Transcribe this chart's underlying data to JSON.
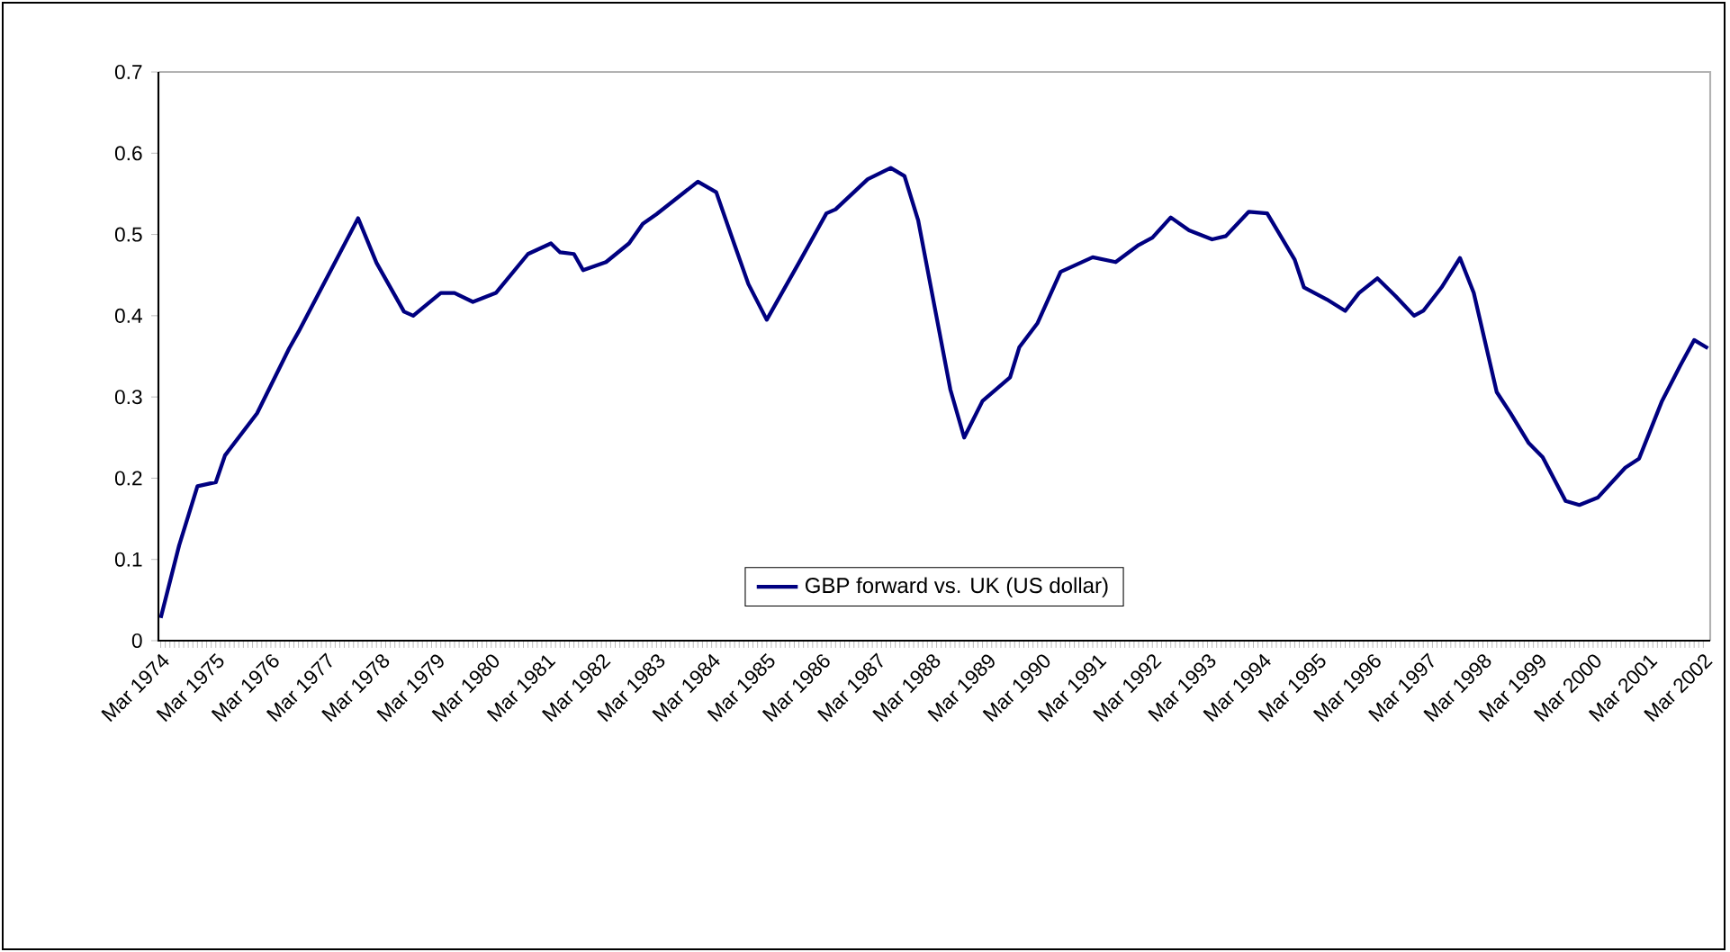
{
  "chart_data": {
    "type": "line",
    "x": [
      "1974-03",
      "1974-07",
      "1974-11",
      "1975-03",
      "1975-05",
      "1975-12",
      "1976-07",
      "1976-09",
      "1977-10",
      "1978-02",
      "1978-08",
      "1978-10",
      "1979-04",
      "1979-07",
      "1979-11",
      "1980-04",
      "1980-11",
      "1981-04",
      "1981-06",
      "1981-09",
      "1981-11",
      "1982-04",
      "1982-09",
      "1982-12",
      "1983-03",
      "1983-12",
      "1984-04",
      "1984-08",
      "1984-11",
      "1985-03",
      "1985-10",
      "1986-04",
      "1986-06",
      "1987-01",
      "1987-06",
      "1987-09",
      "1987-12",
      "1988-04",
      "1988-07",
      "1988-10",
      "1989-02",
      "1989-08",
      "1989-10",
      "1990-02",
      "1990-07",
      "1991-02",
      "1991-07",
      "1991-12",
      "1992-03",
      "1992-07",
      "1992-11",
      "1993-04",
      "1993-07",
      "1993-12",
      "1994-04",
      "1994-10",
      "1994-12",
      "1995-05",
      "1995-09",
      "1995-12",
      "1996-04",
      "1996-08",
      "1996-12",
      "1997-02",
      "1997-06",
      "1997-10",
      "1998-01",
      "1998-06",
      "1998-09",
      "1999-01",
      "1999-04",
      "1999-09",
      "1999-12",
      "2000-04",
      "2000-10",
      "2001-01",
      "2001-06",
      "2001-10",
      "2002-01",
      "2002-04"
    ],
    "series": [
      {
        "name": "GBP forward vs. UK (US dollar)",
        "color": "#000080",
        "values": [
          0.028,
          0.117,
          0.19,
          0.195,
          0.228,
          0.28,
          0.36,
          0.38,
          0.52,
          0.465,
          0.405,
          0.4,
          0.428,
          0.428,
          0.417,
          0.428,
          0.476,
          0.489,
          0.478,
          0.476,
          0.456,
          0.466,
          0.489,
          0.513,
          0.525,
          0.565,
          0.552,
          0.487,
          0.439,
          0.395,
          0.465,
          0.526,
          0.531,
          0.568,
          0.582,
          0.572,
          0.517,
          0.398,
          0.309,
          0.25,
          0.295,
          0.324,
          0.361,
          0.391,
          0.454,
          0.472,
          0.466,
          0.487,
          0.496,
          0.521,
          0.505,
          0.494,
          0.498,
          0.528,
          0.526,
          0.469,
          0.435,
          0.42,
          0.406,
          0.428,
          0.446,
          0.424,
          0.4,
          0.406,
          0.435,
          0.471,
          0.428,
          0.306,
          0.28,
          0.243,
          0.226,
          0.172,
          0.167,
          0.176,
          0.213,
          0.224,
          0.295,
          0.339,
          0.37,
          0.36
        ]
      }
    ],
    "xlim": [
      "1974-03",
      "2002-04"
    ],
    "xticks": [
      {
        "value": "1974-03",
        "label": "Mar 1974"
      },
      {
        "value": "1975-03",
        "label": "Mar 1975"
      },
      {
        "value": "1976-03",
        "label": "Mar 1976"
      },
      {
        "value": "1977-03",
        "label": "Mar 1977"
      },
      {
        "value": "1978-03",
        "label": "Mar 1978"
      },
      {
        "value": "1979-03",
        "label": "Mar 1979"
      },
      {
        "value": "1980-03",
        "label": "Mar 1980"
      },
      {
        "value": "1981-03",
        "label": "Mar 1981"
      },
      {
        "value": "1982-03",
        "label": "Mar 1982"
      },
      {
        "value": "1983-03",
        "label": "Mar 1983"
      },
      {
        "value": "1984-03",
        "label": "Mar 1984"
      },
      {
        "value": "1985-03",
        "label": "Mar 1985"
      },
      {
        "value": "1986-03",
        "label": "Mar 1986"
      },
      {
        "value": "1987-03",
        "label": "Mar 1987"
      },
      {
        "value": "1988-03",
        "label": "Mar 1988"
      },
      {
        "value": "1989-03",
        "label": "Mar 1989"
      },
      {
        "value": "1990-03",
        "label": "Mar 1990"
      },
      {
        "value": "1991-03",
        "label": "Mar 1991"
      },
      {
        "value": "1992-03",
        "label": "Mar 1992"
      },
      {
        "value": "1993-03",
        "label": "Mar 1993"
      },
      {
        "value": "1994-03",
        "label": "Mar 1994"
      },
      {
        "value": "1995-03",
        "label": "Mar 1995"
      },
      {
        "value": "1996-03",
        "label": "Mar 1996"
      },
      {
        "value": "1997-03",
        "label": "Mar 1997"
      },
      {
        "value": "1998-03",
        "label": "Mar 1998"
      },
      {
        "value": "1999-03",
        "label": "Mar 1999"
      },
      {
        "value": "2000-03",
        "label": "Mar 2000"
      },
      {
        "value": "2001-03",
        "label": "Mar 2001"
      },
      {
        "value": "2002-03",
        "label": "Mar 2002"
      }
    ],
    "ylim": [
      0,
      0.7
    ],
    "yticks": [
      0,
      0.1,
      0.2,
      0.3,
      0.4,
      0.5,
      0.6,
      0.7
    ],
    "legend": "bottom"
  }
}
